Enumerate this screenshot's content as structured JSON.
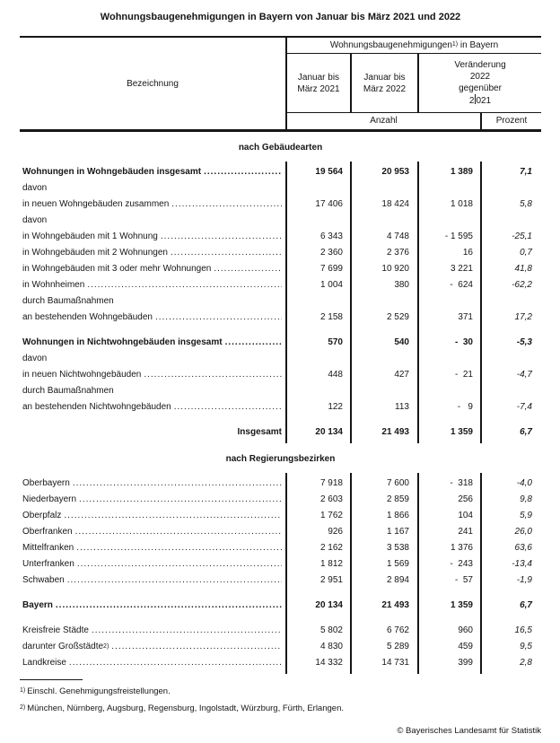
{
  "colors": {
    "ink": "#161616",
    "background": "#ffffff"
  },
  "title": "Wohnungsbaugenehmigungen in Bayern von Januar bis März 2021 und 2022",
  "header": {
    "bezeichnung": "Bezeichnung",
    "group": {
      "pre": "Wohnungsbaugenehmigungen",
      "sup": "1)",
      "post": " in Bayern"
    },
    "col_2021": [
      "Januar bis",
      "März 2021"
    ],
    "col_2022": [
      "Januar bis",
      "März 2022"
    ],
    "change_lines": [
      "Veränderung",
      "2022",
      "gegenüber"
    ],
    "change_last": {
      "pre": "2",
      "post": "021"
    },
    "unit_anzahl": "Anzahl",
    "unit_prozent": "Prozent"
  },
  "sections": [
    {
      "heading": "nach Gebäudearten",
      "rows": [
        {
          "label": "Wohnungen in Wohngebäuden insgesamt",
          "bold": true,
          "leader": true,
          "values": [
            "19 564",
            "20 953",
            "1 389",
            "7,1"
          ]
        },
        {
          "label": "davon"
        },
        {
          "label": "in neuen Wohngebäuden zusammen",
          "leader": true,
          "values": [
            "17 406",
            "18 424",
            "1 018",
            "5,8"
          ]
        },
        {
          "label": "davon"
        },
        {
          "label": "in Wohngebäuden mit 1 Wohnung",
          "leader": true,
          "values": [
            "6 343",
            "4 748",
            "- 1 595",
            "-25,1"
          ]
        },
        {
          "label": "in Wohngebäuden mit 2 Wohnungen",
          "leader": true,
          "values": [
            "2 360",
            "2 376",
            "16",
            "0,7"
          ]
        },
        {
          "label": "in Wohngebäuden mit 3 oder mehr Wohnungen",
          "leader": true,
          "values": [
            "7 699",
            "10 920",
            "3 221",
            "41,8"
          ]
        },
        {
          "label": "in Wohnheimen",
          "leader": true,
          "values": [
            "1 004",
            "380",
            "-  624",
            "-62,2"
          ]
        },
        {
          "label": "durch Baumaßnahmen"
        },
        {
          "label": "an bestehenden Wohngebäuden",
          "leader": true,
          "values": [
            "2 158",
            "2 529",
            "371",
            "17,2"
          ]
        },
        {
          "spacer": 10
        },
        {
          "label": "Wohnungen in Nichtwohngebäuden insgesamt",
          "bold": true,
          "leader": true,
          "values": [
            "570",
            "540",
            "-  30",
            "-5,3"
          ]
        },
        {
          "label": "davon"
        },
        {
          "label": "in neuen Nichtwohngebäuden",
          "leader": true,
          "values": [
            "448",
            "427",
            "-  21",
            "-4,7"
          ]
        },
        {
          "label": "durch Baumaßnahmen"
        },
        {
          "label": "an bestehenden Nichtwohngebäuden",
          "leader": true,
          "values": [
            "122",
            "113",
            "-   9",
            "-7,4"
          ]
        },
        {
          "spacer": 10
        },
        {
          "label": "Insgesamt",
          "bold": true,
          "align": "right",
          "values": [
            "20 134",
            "21 493",
            "1 359",
            "6,7"
          ]
        }
      ]
    },
    {
      "heading": "nach Regierungsbezirken",
      "rows": [
        {
          "label": "Oberbayern",
          "leader": true,
          "values": [
            "7 918",
            "7 600",
            "-  318",
            "-4,0"
          ]
        },
        {
          "label": "Niederbayern",
          "leader": true,
          "values": [
            "2 603",
            "2 859",
            "256",
            "9,8"
          ]
        },
        {
          "label": "Oberpfalz",
          "leader": true,
          "values": [
            "1 762",
            "1 866",
            "104",
            "5,9"
          ]
        },
        {
          "label": "Oberfranken",
          "leader": true,
          "values": [
            "926",
            "1 167",
            "241",
            "26,0"
          ]
        },
        {
          "label": "Mittelfranken",
          "leader": true,
          "values": [
            "2 162",
            "3 538",
            "1 376",
            "63,6"
          ]
        },
        {
          "label": "Unterfranken",
          "leader": true,
          "values": [
            "1 812",
            "1 569",
            "-  243",
            "-13,4"
          ]
        },
        {
          "label": "Schwaben",
          "leader": true,
          "values": [
            "2 951",
            "2 894",
            "-  57",
            "-1,9"
          ]
        },
        {
          "spacer": 10
        },
        {
          "label": "Bayern",
          "bold": true,
          "leader": true,
          "values": [
            "20 134",
            "21 493",
            "1 359",
            "6,7"
          ]
        },
        {
          "spacer": 10
        },
        {
          "label": "Kreisfreie Städte",
          "leader": true,
          "values": [
            "5 802",
            "6 762",
            "960",
            "16,5"
          ]
        },
        {
          "label": "darunter Großstädte",
          "sup": "2)",
          "leader": true,
          "values": [
            "4 830",
            "5 289",
            "459",
            "9,5"
          ]
        },
        {
          "label": "Landkreise",
          "leader": true,
          "values": [
            "14 332",
            "14 731",
            "399",
            "2,8"
          ]
        }
      ]
    }
  ],
  "footnotes": [
    {
      "marker": "1)",
      "text": "Einschl. Genehmigungsfreistellungen."
    },
    {
      "marker": "2)",
      "text": "München, Nürnberg, Augsburg, Regensburg, Ingolstadt, Würzburg, Fürth, Erlangen."
    }
  ],
  "copyright": "© Bayerisches Landesamt für Statistik",
  "leader_char": "."
}
